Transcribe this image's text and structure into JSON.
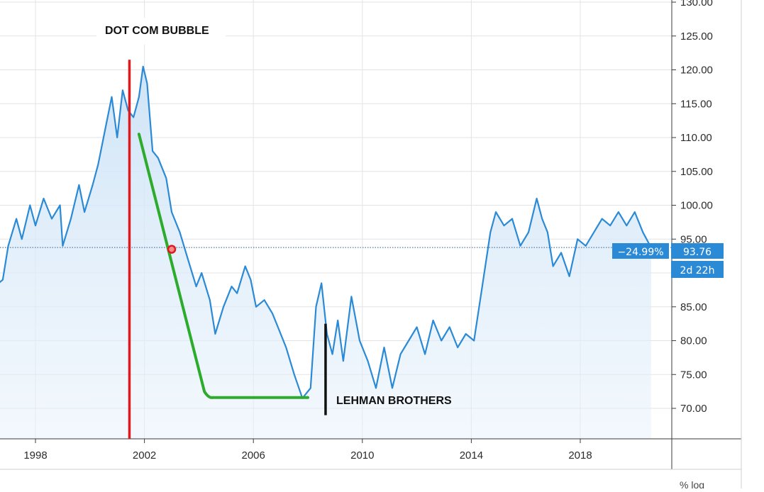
{
  "chart_data": {
    "type": "area",
    "x_axis_ticks": [
      "1998",
      "2002",
      "2006",
      "2010",
      "2014",
      "2018"
    ],
    "y_axis_ticks": [
      "130.00",
      "125.00",
      "120.00",
      "115.00",
      "110.00",
      "105.00",
      "100.00",
      "95.00",
      "90.00",
      "85.00",
      "80.00",
      "75.00",
      "70.00"
    ],
    "ylim": [
      65.5,
      130.5
    ],
    "xlim": [
      1996.5,
      2022.5
    ],
    "grid": true,
    "series": [
      {
        "color": "#2b8ad6",
        "points": [
          [
            1996.5,
            88
          ],
          [
            1996.8,
            89
          ],
          [
            1997.0,
            94
          ],
          [
            1997.3,
            98
          ],
          [
            1997.5,
            95
          ],
          [
            1997.8,
            100
          ],
          [
            1998.0,
            97
          ],
          [
            1998.3,
            101
          ],
          [
            1998.6,
            98
          ],
          [
            1998.9,
            100
          ],
          [
            1999.0,
            94
          ],
          [
            1999.3,
            98
          ],
          [
            1999.6,
            103
          ],
          [
            1999.8,
            99
          ],
          [
            2000.1,
            103
          ],
          [
            2000.3,
            106
          ],
          [
            2000.6,
            112
          ],
          [
            2000.8,
            116
          ],
          [
            2001.0,
            110
          ],
          [
            2001.2,
            117
          ],
          [
            2001.4,
            114
          ],
          [
            2001.6,
            113
          ],
          [
            2001.8,
            116
          ],
          [
            2001.95,
            120.5
          ],
          [
            2002.1,
            118
          ],
          [
            2002.3,
            108
          ],
          [
            2002.5,
            107
          ],
          [
            2002.8,
            104
          ],
          [
            2003.0,
            99
          ],
          [
            2003.3,
            96
          ],
          [
            2003.6,
            92
          ],
          [
            2003.9,
            88
          ],
          [
            2004.1,
            90
          ],
          [
            2004.4,
            86
          ],
          [
            2004.6,
            81
          ],
          [
            2004.9,
            85
          ],
          [
            2005.2,
            88
          ],
          [
            2005.4,
            87
          ],
          [
            2005.7,
            91
          ],
          [
            2005.9,
            89
          ],
          [
            2006.1,
            85
          ],
          [
            2006.4,
            86
          ],
          [
            2006.7,
            84
          ],
          [
            2006.9,
            82
          ],
          [
            2007.2,
            79
          ],
          [
            2007.5,
            75
          ],
          [
            2007.8,
            71.5
          ],
          [
            2008.1,
            73
          ],
          [
            2008.3,
            85
          ],
          [
            2008.5,
            88.5
          ],
          [
            2008.7,
            81
          ],
          [
            2008.9,
            78
          ],
          [
            2009.1,
            83
          ],
          [
            2009.3,
            77
          ],
          [
            2009.6,
            86.5
          ],
          [
            2009.9,
            80
          ],
          [
            2010.2,
            77
          ],
          [
            2010.5,
            73
          ],
          [
            2010.8,
            79
          ],
          [
            2011.1,
            73
          ],
          [
            2011.4,
            78
          ],
          [
            2011.7,
            80
          ],
          [
            2012.0,
            82
          ],
          [
            2012.3,
            78
          ],
          [
            2012.6,
            83
          ],
          [
            2012.9,
            80
          ],
          [
            2013.2,
            82
          ],
          [
            2013.5,
            79
          ],
          [
            2013.8,
            81
          ],
          [
            2014.1,
            80
          ],
          [
            2014.4,
            88
          ],
          [
            2014.7,
            96
          ],
          [
            2014.9,
            99
          ],
          [
            2015.2,
            97
          ],
          [
            2015.5,
            98
          ],
          [
            2015.8,
            94
          ],
          [
            2016.1,
            96
          ],
          [
            2016.4,
            101
          ],
          [
            2016.6,
            98
          ],
          [
            2016.8,
            96
          ],
          [
            2017.0,
            91
          ],
          [
            2017.3,
            93
          ],
          [
            2017.6,
            89.5
          ],
          [
            2017.9,
            95
          ],
          [
            2018.2,
            94
          ],
          [
            2018.5,
            96
          ],
          [
            2018.8,
            98
          ],
          [
            2019.1,
            97
          ],
          [
            2019.4,
            99
          ],
          [
            2019.7,
            97
          ],
          [
            2020.0,
            99
          ],
          [
            2020.3,
            96
          ],
          [
            2020.6,
            93.76
          ]
        ]
      }
    ],
    "last_value_label": "93.76",
    "change_label": "−24.99%",
    "countdown_label": "2d 22h",
    "annotations": [
      {
        "text": "DOT COM BUBBLE"
      },
      {
        "text": "LEHMAN BROTHERS"
      }
    ],
    "drawings": [
      {
        "type": "vertical-line",
        "color": "#e0191e",
        "x": 2001.45,
        "y_from": 121.5,
        "y_to": 65.5
      },
      {
        "type": "trendline",
        "color": "#2cab2c",
        "points": [
          [
            2001.8,
            110.5
          ],
          [
            2004.2,
            72.5
          ],
          [
            2004.5,
            71.6
          ],
          [
            2008.0,
            71.6
          ]
        ]
      },
      {
        "type": "vertical-line",
        "color": "#111111",
        "x": 2008.65,
        "y_from": 82.5,
        "y_to": 69
      },
      {
        "type": "marker",
        "color": "#e0191e",
        "x": 2003.0,
        "y": 93.5
      }
    ],
    "price_line_value": 93.76,
    "colors": {
      "line": "#2b8ad6",
      "fill": "#e6f1fb",
      "grid": "#e3e3e3",
      "badge": "#2b8ad6",
      "axis": "#3a3a3a"
    }
  },
  "corner_label": "% log"
}
